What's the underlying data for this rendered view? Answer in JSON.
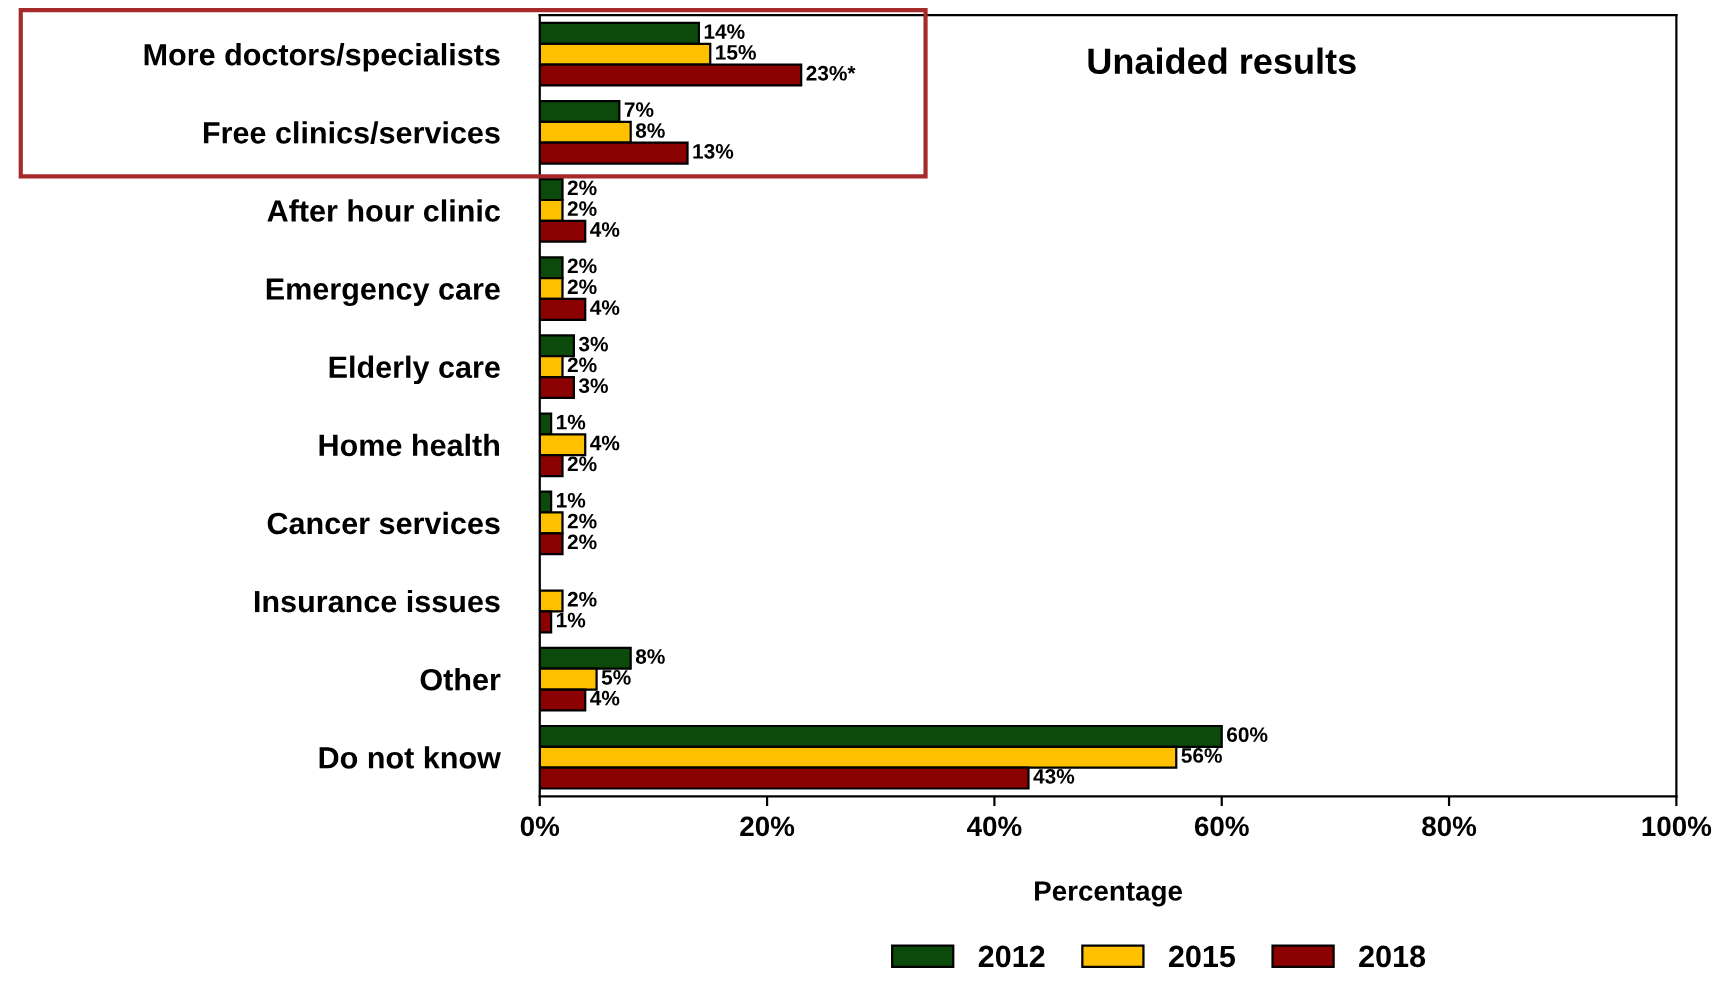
{
  "chart_data": {
    "type": "bar",
    "orientation": "horizontal",
    "xlabel": "Percentage",
    "categories": [
      "More doctors/specialists",
      "Free clinics/services",
      "After hour clinic",
      "Emergency care",
      "Elderly care",
      "Home health",
      "Cancer services",
      "Insurance issues",
      "Other",
      "Do not know"
    ],
    "series": [
      {
        "name": "2012",
        "color": "#0b4a0b",
        "values": [
          14,
          7,
          2,
          2,
          3,
          1,
          1,
          null,
          8,
          60
        ],
        "value_labels": [
          "14%",
          "7%",
          "2%",
          "2%",
          "3%",
          "1%",
          "1%",
          null,
          "8%",
          "60%"
        ]
      },
      {
        "name": "2015",
        "color": "#ffc000",
        "values": [
          15,
          8,
          2,
          2,
          2,
          4,
          2,
          2,
          5,
          56
        ],
        "value_labels": [
          "15%",
          "8%",
          "2%",
          "2%",
          "2%",
          "4%",
          "2%",
          "2%",
          "5%",
          "56%"
        ]
      },
      {
        "name": "2018",
        "color": "#8b0000",
        "values": [
          23,
          13,
          4,
          4,
          3,
          2,
          2,
          1,
          4,
          43
        ],
        "value_labels": [
          "23%*",
          "13%",
          "4%",
          "4%",
          "3%",
          "2%",
          "2%",
          "1%",
          "4%",
          "43%"
        ]
      }
    ],
    "xlim": [
      0,
      100
    ],
    "xticks": [
      {
        "value": 0,
        "label": "0%"
      },
      {
        "value": 20,
        "label": "20%"
      },
      {
        "value": 40,
        "label": "40%"
      },
      {
        "value": 60,
        "label": "60%"
      },
      {
        "value": 80,
        "label": "80%"
      },
      {
        "value": 100,
        "label": "100%"
      }
    ],
    "annotations": [
      "Unaided results"
    ],
    "grid": false,
    "legend": "bottom"
  }
}
